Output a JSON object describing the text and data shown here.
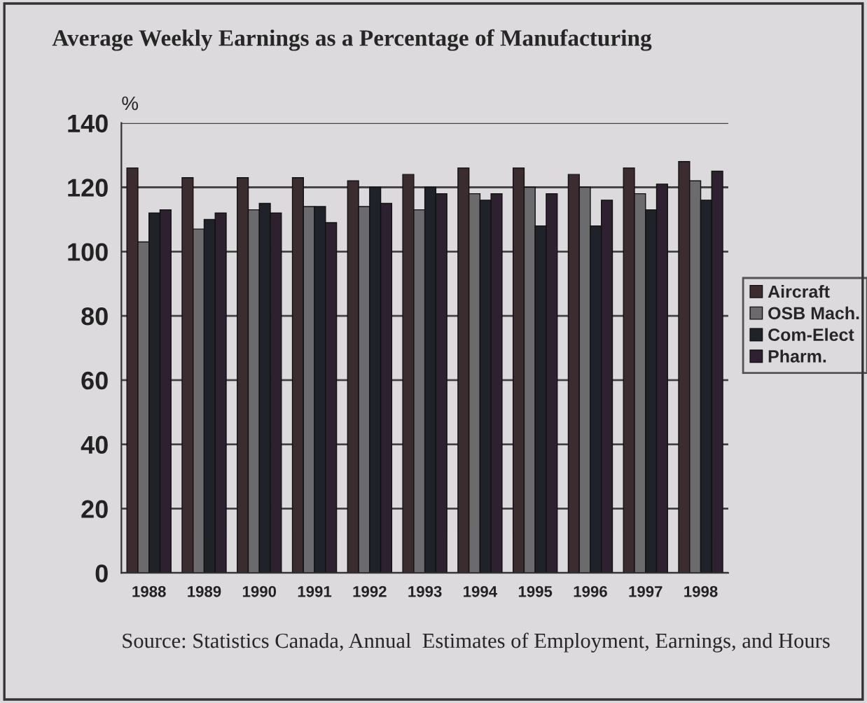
{
  "chart_data": {
    "type": "bar",
    "title": "Average Weekly Earnings as a Percentage of Manufacturing",
    "ylabel": "%",
    "categories": [
      "1988",
      "1989",
      "1990",
      "1991",
      "1992",
      "1993",
      "1994",
      "1995",
      "1996",
      "1997",
      "1998"
    ],
    "series": [
      {
        "name": "Aircraft",
        "color": "#3b2c30",
        "values": [
          126,
          123,
          123,
          123,
          122,
          124,
          126,
          126,
          124,
          126,
          128
        ]
      },
      {
        "name": "OSB Mach.",
        "color": "#6b6a6c",
        "values": [
          103,
          107,
          113,
          114,
          114,
          113,
          118,
          120,
          120,
          118,
          122
        ]
      },
      {
        "name": "Com-Elect",
        "color": "#1f2329",
        "values": [
          112,
          110,
          115,
          114,
          120,
          120,
          116,
          108,
          108,
          113,
          116
        ]
      },
      {
        "name": "Pharm.",
        "color": "#2d2130",
        "values": [
          113,
          112,
          112,
          109,
          115,
          118,
          118,
          118,
          116,
          121,
          125
        ]
      }
    ],
    "ylim": [
      0,
      140
    ],
    "yticks": [
      0,
      20,
      40,
      60,
      80,
      100,
      120,
      140
    ],
    "grid": "y",
    "legend": "right",
    "annotations": [
      "Source: Statistics Canada, Annual  Estimates of Employment, Earnings, and Hours"
    ]
  }
}
